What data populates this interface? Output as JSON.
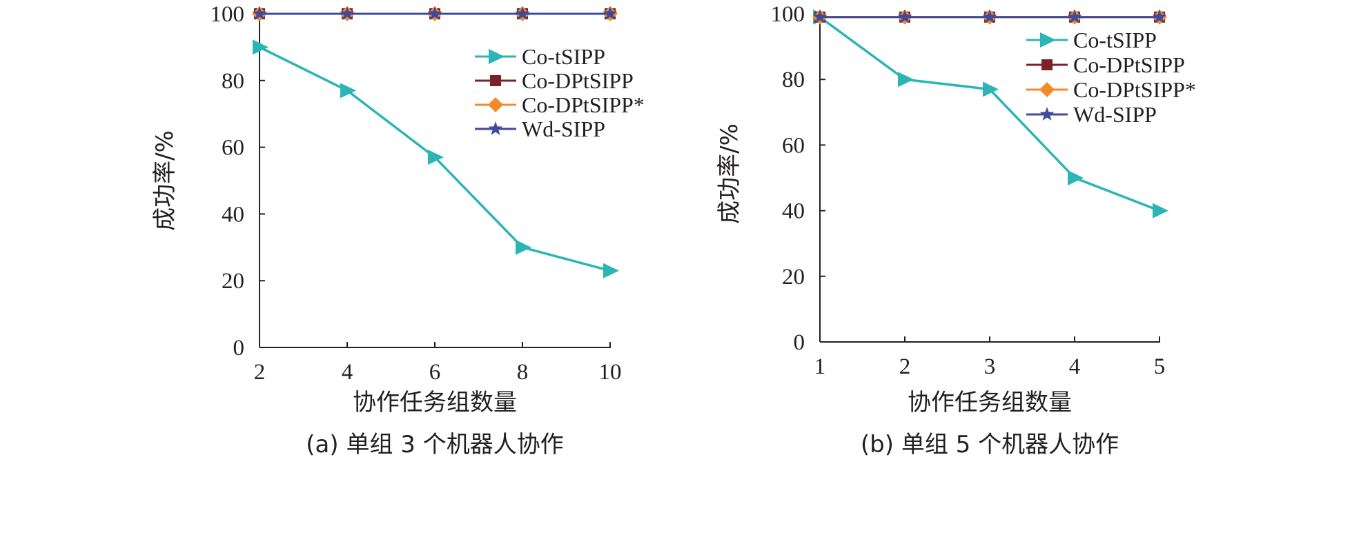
{
  "colors": {
    "Co-tSIPP": "#2bb5b5",
    "Co-DPtSIPP": "#7b2128",
    "Co-DPtSIPP*": "#f58a2c",
    "Wd-SIPP": "#3f4a9a",
    "axis": "#231f20"
  },
  "chart_data": [
    {
      "type": "line",
      "caption": "(a) 单组 3 个机器人协作",
      "xlabel": "协作任务组数量",
      "ylabel": "成功率/%",
      "x": [
        2,
        4,
        6,
        8,
        10
      ],
      "xlim": [
        2,
        10
      ],
      "ylim": [
        0,
        100
      ],
      "xticks": [
        "2",
        "4",
        "6",
        "8",
        "10"
      ],
      "yticks": [
        "0",
        "20",
        "40",
        "60",
        "80",
        "100"
      ],
      "grid": false,
      "legend_position": "top-right",
      "series": [
        {
          "name": "Co-tSIPP",
          "marker": "triangle-right",
          "values": [
            90,
            77,
            57,
            30,
            23
          ]
        },
        {
          "name": "Co-DPtSIPP",
          "marker": "square",
          "values": [
            100,
            100,
            100,
            100,
            100
          ]
        },
        {
          "name": "Co-DPtSIPP*",
          "marker": "diamond",
          "values": [
            100,
            100,
            100,
            100,
            100
          ]
        },
        {
          "name": "Wd-SIPP",
          "marker": "star",
          "values": [
            100,
            100,
            100,
            100,
            100
          ]
        }
      ]
    },
    {
      "type": "line",
      "caption": "(b) 单组 5 个机器人协作",
      "xlabel": "协作任务组数量",
      "ylabel": "成功率/%",
      "x": [
        1,
        2,
        3,
        4,
        5
      ],
      "xlim": [
        1,
        5
      ],
      "ylim": [
        0,
        100
      ],
      "xticks": [
        "1",
        "2",
        "3",
        "4",
        "5"
      ],
      "yticks": [
        "0",
        "20",
        "40",
        "60",
        "80",
        "100"
      ],
      "grid": false,
      "legend_position": "top-right",
      "series": [
        {
          "name": "Co-tSIPP",
          "marker": "triangle-right",
          "values": [
            99,
            80,
            77,
            50,
            40
          ]
        },
        {
          "name": "Co-DPtSIPP",
          "marker": "square",
          "values": [
            99,
            99,
            99,
            99,
            99
          ]
        },
        {
          "name": "Co-DPtSIPP*",
          "marker": "diamond",
          "values": [
            99,
            99,
            99,
            99,
            99
          ]
        },
        {
          "name": "Wd-SIPP",
          "marker": "star",
          "values": [
            99,
            99,
            99,
            99,
            99
          ]
        }
      ]
    }
  ]
}
